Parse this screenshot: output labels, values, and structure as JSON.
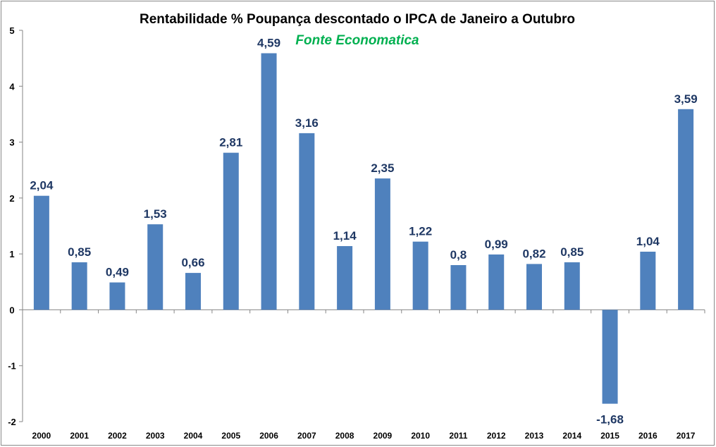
{
  "chart_data": {
    "type": "bar",
    "title": "Rentabilidade % Poupança descontado o IPCA de Janeiro a Outubro",
    "subtitle": "Fonte Economatica",
    "xlabel": "",
    "ylabel": "",
    "categories": [
      "2000",
      "2001",
      "2002",
      "2003",
      "2004",
      "2005",
      "2006",
      "2007",
      "2008",
      "2009",
      "2010",
      "2011",
      "2012",
      "2013",
      "2014",
      "2015",
      "2016",
      "2017"
    ],
    "values": [
      2.04,
      0.85,
      0.49,
      1.53,
      0.66,
      2.81,
      4.59,
      3.16,
      1.14,
      2.35,
      1.22,
      0.8,
      0.99,
      0.82,
      0.85,
      -1.68,
      1.04,
      3.59
    ],
    "data_labels": [
      "2,04",
      "0,85",
      "0,49",
      "1,53",
      "0,66",
      "2,81",
      "4,59",
      "3,16",
      "1,14",
      "2,35",
      "1,22",
      "0,8",
      "0,99",
      "0,82",
      "0,85",
      "-1,68",
      "1,04",
      "3,59"
    ],
    "ylim": [
      -2,
      5
    ],
    "yticks": [
      "-2",
      "-1",
      "0",
      "1",
      "2",
      "3",
      "4",
      "5"
    ],
    "grid": false,
    "legend": "none",
    "colors": {
      "bar": "#4f81bd",
      "data_label": "#1f3864",
      "subtitle": "#00b050",
      "title": "#000000"
    }
  }
}
